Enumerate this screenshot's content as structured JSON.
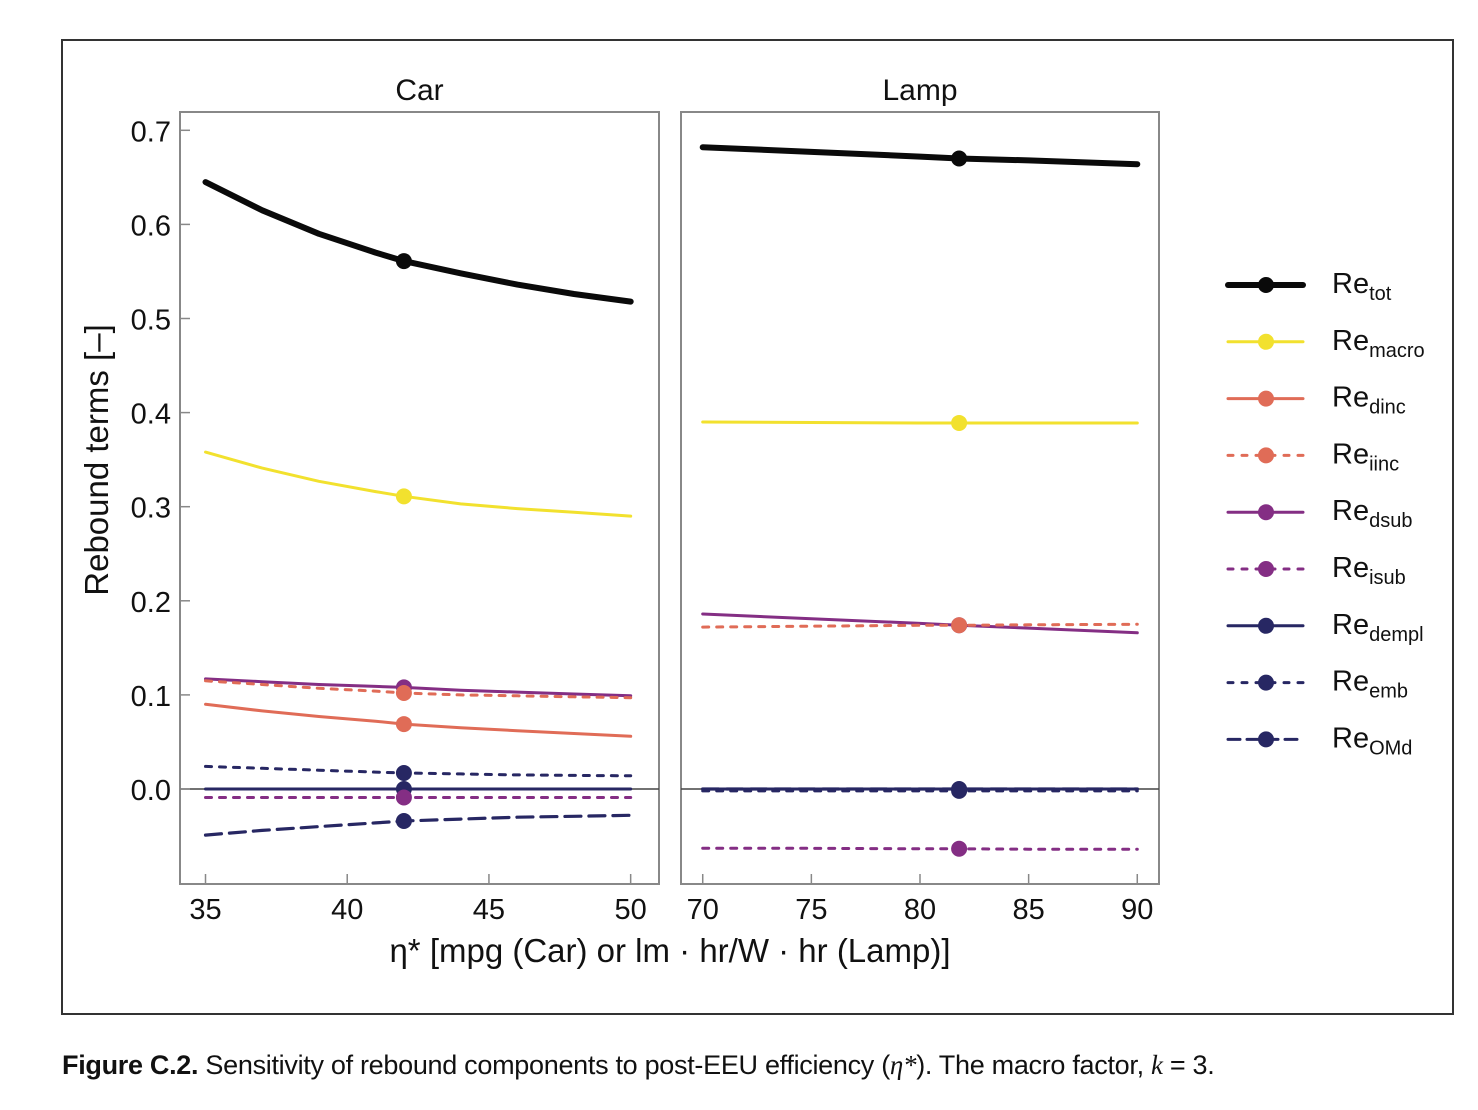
{
  "figure": {
    "caption_label": "Figure C.2.",
    "caption_text_1": " Sensitivity of rebound components to post-EEU efficiency (",
    "caption_eta": "η*",
    "caption_text_2": "). The macro factor, ",
    "caption_k": "k",
    "caption_text_3": " = 3."
  },
  "chart_data": {
    "type": "line",
    "ylabel": "Rebound terms [–]",
    "xlabel": "η* [mpg (Car) or lm · hr/W · hr (Lamp)]",
    "ylim": [
      -0.1,
      0.72
    ],
    "yticks": [
      0.0,
      0.1,
      0.2,
      0.3,
      0.4,
      0.5,
      0.6,
      0.7
    ],
    "ytick_labels": [
      "0.0",
      "0.1",
      "0.2",
      "0.3",
      "0.4",
      "0.5",
      "0.6",
      "0.7"
    ],
    "legend_position": "right",
    "legend": [
      {
        "key": "tot",
        "base": "Re",
        "sub": "tot",
        "color": "#0a0a0a",
        "style": "solid",
        "width": "thick"
      },
      {
        "key": "macro",
        "base": "Re",
        "sub": "macro",
        "color": "#f2e12e",
        "style": "solid"
      },
      {
        "key": "dinc",
        "base": "Re",
        "sub": "dinc",
        "color": "#e06c57",
        "style": "solid"
      },
      {
        "key": "iinc",
        "base": "Re",
        "sub": "iinc",
        "color": "#e06c57",
        "style": "dotted"
      },
      {
        "key": "dsub",
        "base": "Re",
        "sub": "dsub",
        "color": "#842e84",
        "style": "solid"
      },
      {
        "key": "isub",
        "base": "Re",
        "sub": "isub",
        "color": "#842e84",
        "style": "dotted"
      },
      {
        "key": "dempl",
        "base": "Re",
        "sub": "dempl",
        "color": "#272763",
        "style": "solid"
      },
      {
        "key": "emb",
        "base": "Re",
        "sub": "emb",
        "color": "#272763",
        "style": "dotted"
      },
      {
        "key": "OMd",
        "base": "Re",
        "sub": "OMd",
        "color": "#272763",
        "style": "dashed"
      }
    ],
    "panels": [
      {
        "title": "Car",
        "xlim": [
          34.1,
          51.0
        ],
        "xticks": [
          35,
          40,
          45,
          50
        ],
        "xtick_labels": [
          "35",
          "40",
          "45",
          "50"
        ],
        "x": [
          35,
          37,
          39,
          41,
          42,
          44,
          46,
          48,
          50
        ],
        "marker_x": 42,
        "series": {
          "tot": [
            0.645,
            0.615,
            0.59,
            0.57,
            0.561,
            0.548,
            0.536,
            0.526,
            0.518
          ],
          "macro": [
            0.358,
            0.341,
            0.327,
            0.316,
            0.311,
            0.303,
            0.298,
            0.294,
            0.29
          ],
          "dinc": [
            0.09,
            0.083,
            0.077,
            0.072,
            0.069,
            0.065,
            0.062,
            0.059,
            0.056
          ],
          "iinc": [
            0.115,
            0.111,
            0.107,
            0.104,
            0.102,
            0.1,
            0.099,
            0.098,
            0.097
          ],
          "dsub": [
            0.117,
            0.114,
            0.111,
            0.109,
            0.108,
            0.105,
            0.103,
            0.101,
            0.099
          ],
          "isub": [
            -0.009,
            -0.009,
            -0.009,
            -0.009,
            -0.009,
            -0.009,
            -0.009,
            -0.009,
            -0.009
          ],
          "dempl": [
            0.0,
            0.0,
            0.0,
            0.0,
            0.0,
            0.0,
            0.0,
            0.0,
            0.0
          ],
          "emb": [
            0.024,
            0.022,
            0.02,
            0.018,
            0.017,
            0.016,
            0.015,
            0.0145,
            0.014
          ],
          "OMd": [
            -0.049,
            -0.044,
            -0.04,
            -0.036,
            -0.034,
            -0.032,
            -0.03,
            -0.029,
            -0.028
          ]
        },
        "marker_values": {
          "tot": 0.561,
          "macro": 0.311,
          "dinc": 0.069,
          "iinc": 0.102,
          "dsub": 0.108,
          "isub": -0.009,
          "dempl": 0.0,
          "emb": 0.017,
          "OMd": -0.034
        }
      },
      {
        "title": "Lamp",
        "xlim": [
          69.0,
          91.0
        ],
        "xticks": [
          70,
          75,
          80,
          85,
          90
        ],
        "xtick_labels": [
          "70",
          "75",
          "80",
          "85",
          "90"
        ],
        "x": [
          70,
          75,
          80,
          81.8,
          85,
          90
        ],
        "marker_x": 81.8,
        "series": {
          "tot": [
            0.682,
            0.677,
            0.672,
            0.67,
            0.668,
            0.664
          ],
          "macro": [
            0.39,
            0.3895,
            0.389,
            0.389,
            0.389,
            0.389
          ],
          "dinc": [
            0.0,
            0.0,
            0.0,
            0.0,
            0.0,
            0.0
          ],
          "iinc": [
            0.172,
            0.173,
            0.174,
            0.174,
            0.1745,
            0.175
          ],
          "dsub": [
            0.186,
            0.181,
            0.176,
            0.174,
            0.171,
            0.166
          ],
          "isub": [
            -0.063,
            -0.063,
            -0.0635,
            -0.0635,
            -0.064,
            -0.064
          ],
          "dempl": [
            0.0,
            0.0,
            0.0,
            0.0,
            0.0,
            0.0
          ],
          "emb": [
            -0.002,
            -0.002,
            -0.002,
            -0.002,
            -0.002,
            -0.002
          ],
          "OMd": [
            0.0,
            0.0,
            0.0,
            0.0,
            0.0,
            0.0
          ]
        },
        "marker_values": {
          "tot": 0.67,
          "macro": 0.389,
          "iinc": 0.174,
          "dsub": 0.174,
          "isub": -0.0635,
          "dempl": 0.0,
          "emb": -0.002
        }
      }
    ]
  }
}
